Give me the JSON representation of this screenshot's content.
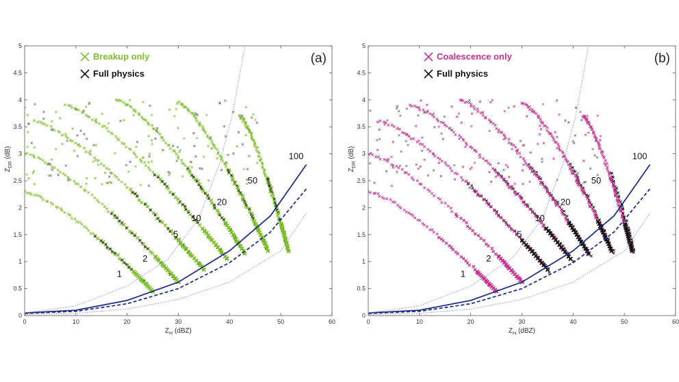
{
  "colors": {
    "breakup": "#7dbe2c",
    "coalescence": "#c4308f",
    "full_physics": "#111111",
    "curve_solid": "#1f2f86",
    "curve_dashed": "#1f2f86",
    "curve_dotted": "#8a90cc",
    "background": "#ffffff"
  },
  "chart_data": [
    {
      "type": "scatter",
      "panel_label": "(a)",
      "xlabel_main": "Z",
      "xlabel_sub": "H",
      "xlabel_unit": " (dBZ)",
      "ylabel_main": "Z",
      "ylabel_sub": "DR",
      "ylabel_unit": " (dB)",
      "xlim": [
        0,
        60
      ],
      "ylim": [
        0,
        5
      ],
      "xticks": [
        "0",
        "10",
        "20",
        "30",
        "40",
        "50",
        "60"
      ],
      "yticks": [
        "0",
        "0.5",
        "1",
        "1.5",
        "2",
        "2.5",
        "3",
        "3.5",
        "4",
        "4.5",
        "5"
      ],
      "legend": [
        {
          "label": "Breakup only",
          "color_key": "breakup"
        },
        {
          "label": "Full physics",
          "color_key": "full_physics"
        }
      ],
      "rain_rate_labels": [
        {
          "text": "1",
          "x": 18.5,
          "y": 0.72
        },
        {
          "text": "2",
          "x": 23.5,
          "y": 1.0
        },
        {
          "text": "5",
          "x": 29.5,
          "y": 1.45
        },
        {
          "text": "10",
          "x": 33.5,
          "y": 1.75
        },
        {
          "text": "20",
          "x": 38.5,
          "y": 2.05
        },
        {
          "text": "50",
          "x": 44.5,
          "y": 2.45
        },
        {
          "text": "100",
          "x": 53.0,
          "y": 2.9
        }
      ],
      "families": [
        {
          "rain_rate": "1",
          "start": [
            0,
            2.3
          ],
          "end": [
            25,
            0.45
          ]
        },
        {
          "rain_rate": "2",
          "start": [
            0,
            3.0
          ],
          "end": [
            30,
            0.62
          ]
        },
        {
          "rain_rate": "5",
          "start": [
            2,
            3.6
          ],
          "end": [
            35,
            0.85
          ]
        },
        {
          "rain_rate": "10",
          "start": [
            8,
            3.9
          ],
          "end": [
            39.5,
            1.05
          ]
        },
        {
          "rain_rate": "20",
          "start": [
            18,
            4.0
          ],
          "end": [
            43,
            1.15
          ]
        },
        {
          "rain_rate": "50",
          "start": [
            30,
            3.95
          ],
          "end": [
            47.5,
            1.2
          ]
        },
        {
          "rain_rate": "100",
          "start": [
            42,
            3.7
          ],
          "end": [
            51.5,
            1.2
          ]
        }
      ],
      "curves": [
        {
          "style": "solid",
          "points": [
            [
              0,
              0.05
            ],
            [
              10,
              0.1
            ],
            [
              20,
              0.28
            ],
            [
              30,
              0.62
            ],
            [
              40,
              1.2
            ],
            [
              48,
              1.85
            ],
            [
              55,
              2.8
            ]
          ]
        },
        {
          "style": "dashed",
          "points": [
            [
              0,
              0.04
            ],
            [
              10,
              0.08
            ],
            [
              20,
              0.22
            ],
            [
              30,
              0.5
            ],
            [
              40,
              0.98
            ],
            [
              48,
              1.55
            ],
            [
              55,
              2.35
            ]
          ]
        },
        {
          "style": "dotted",
          "points": [
            [
              0,
              0.05
            ],
            [
              10,
              0.18
            ],
            [
              20,
              0.55
            ],
            [
              28,
              1.05
            ],
            [
              34,
              1.8
            ],
            [
              38,
              2.8
            ],
            [
              40.5,
              3.7
            ],
            [
              43,
              5.0
            ]
          ]
        },
        {
          "style": "dotted",
          "points": [
            [
              0,
              0.02
            ],
            [
              10,
              0.04
            ],
            [
              20,
              0.12
            ],
            [
              30,
              0.3
            ],
            [
              40,
              0.62
            ],
            [
              50,
              1.2
            ],
            [
              55,
              1.9
            ]
          ]
        }
      ]
    },
    {
      "type": "scatter",
      "panel_label": "(b)",
      "xlabel_main": "Z",
      "xlabel_sub": "H",
      "xlabel_unit": " (dBZ)",
      "ylabel_main": "Z",
      "ylabel_sub": "DR",
      "ylabel_unit": " (dB)",
      "xlim": [
        0,
        60
      ],
      "ylim": [
        0,
        5
      ],
      "xticks": [
        "0",
        "10",
        "20",
        "30",
        "40",
        "50",
        "60"
      ],
      "yticks": [
        "0",
        "0.5",
        "1",
        "1.5",
        "2",
        "2.5",
        "3",
        "3.5",
        "4",
        "4.5",
        "5"
      ],
      "legend": [
        {
          "label": "Coalescence only",
          "color_key": "coalescence"
        },
        {
          "label": "Full physics",
          "color_key": "full_physics"
        }
      ],
      "rain_rate_labels": [
        {
          "text": "1",
          "x": 18.5,
          "y": 0.72
        },
        {
          "text": "2",
          "x": 23.5,
          "y": 1.0
        },
        {
          "text": "5",
          "x": 29.5,
          "y": 1.45
        },
        {
          "text": "10",
          "x": 33.5,
          "y": 1.75
        },
        {
          "text": "20",
          "x": 38.5,
          "y": 2.05
        },
        {
          "text": "50",
          "x": 44.5,
          "y": 2.45
        },
        {
          "text": "100",
          "x": 53.0,
          "y": 2.9
        }
      ],
      "families": [
        {
          "rain_rate": "1",
          "start": [
            0,
            2.3
          ],
          "end": [
            25,
            0.45
          ]
        },
        {
          "rain_rate": "2",
          "start": [
            0,
            3.0
          ],
          "end": [
            30,
            0.62
          ]
        },
        {
          "rain_rate": "5",
          "start": [
            2,
            3.6
          ],
          "end": [
            35,
            0.85
          ]
        },
        {
          "rain_rate": "10",
          "start": [
            8,
            3.9
          ],
          "end": [
            39.5,
            1.05
          ]
        },
        {
          "rain_rate": "20",
          "start": [
            18,
            4.0
          ],
          "end": [
            43,
            1.15
          ]
        },
        {
          "rain_rate": "50",
          "start": [
            30,
            3.95
          ],
          "end": [
            47.5,
            1.2
          ]
        },
        {
          "rain_rate": "100",
          "start": [
            42,
            3.7
          ],
          "end": [
            51.5,
            1.2
          ]
        }
      ],
      "curves": [
        {
          "style": "solid",
          "points": [
            [
              0,
              0.05
            ],
            [
              10,
              0.1
            ],
            [
              20,
              0.28
            ],
            [
              30,
              0.62
            ],
            [
              40,
              1.2
            ],
            [
              48,
              1.85
            ],
            [
              55,
              2.8
            ]
          ]
        },
        {
          "style": "dashed",
          "points": [
            [
              0,
              0.04
            ],
            [
              10,
              0.08
            ],
            [
              20,
              0.22
            ],
            [
              30,
              0.5
            ],
            [
              40,
              0.98
            ],
            [
              48,
              1.55
            ],
            [
              55,
              2.35
            ]
          ]
        },
        {
          "style": "dotted",
          "points": [
            [
              0,
              0.05
            ],
            [
              10,
              0.18
            ],
            [
              20,
              0.55
            ],
            [
              28,
              1.05
            ],
            [
              34,
              1.8
            ],
            [
              38,
              2.8
            ],
            [
              40.5,
              3.7
            ],
            [
              43,
              5.0
            ]
          ]
        },
        {
          "style": "dotted",
          "points": [
            [
              0,
              0.02
            ],
            [
              10,
              0.04
            ],
            [
              20,
              0.12
            ],
            [
              30,
              0.3
            ],
            [
              40,
              0.62
            ],
            [
              50,
              1.2
            ],
            [
              55,
              1.9
            ]
          ]
        }
      ]
    }
  ]
}
